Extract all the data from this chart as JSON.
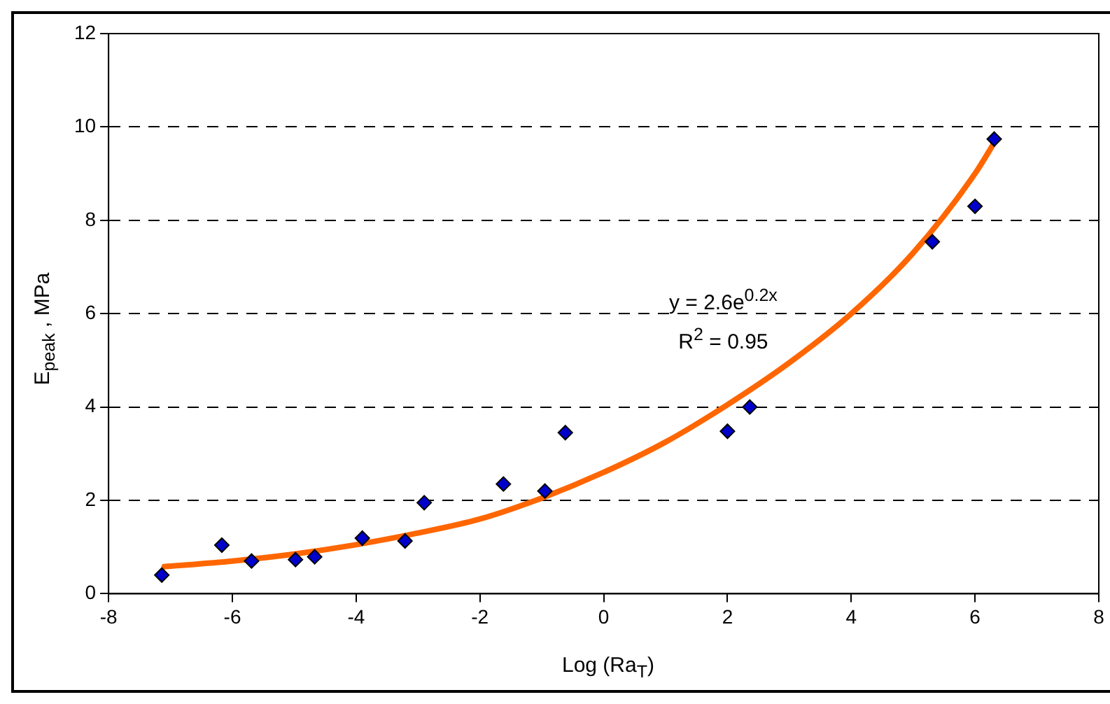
{
  "chart_data": {
    "type": "scatter",
    "xlabel": "Log (Ra$_{T}$)",
    "ylabel": "E$_{peak}$ , MPa",
    "annotations": [
      "y = 2.6e$^{0.2x}$",
      "R$^{2}$ = 0.95"
    ],
    "xlim": [
      -8,
      8
    ],
    "xticks": [
      -8,
      -6,
      -4,
      -2,
      0,
      2,
      4,
      6,
      8
    ],
    "ylim": [
      0,
      12
    ],
    "yticks": [
      0,
      2,
      4,
      6,
      8,
      10,
      12
    ],
    "grid": "y",
    "legend": false,
    "marker": "diamond",
    "series": [
      {
        "type": "scatter",
        "color": "#0000cc",
        "x": [
          -7.14,
          -6.17,
          -5.69,
          -4.98,
          -4.67,
          -3.9,
          -3.21,
          -2.9,
          -1.62,
          -0.95,
          -0.62,
          2.0,
          2.36,
          5.31,
          6.0,
          6.31
        ],
        "values": [
          0.4,
          1.04,
          0.7,
          0.73,
          0.79,
          1.19,
          1.13,
          1.95,
          2.35,
          2.2,
          3.45,
          3.48,
          4.0,
          7.54,
          8.3,
          9.74
        ]
      },
      {
        "type": "line",
        "color": "#ff6600",
        "line_style": "solid",
        "marker": "none",
        "x": [
          -7.1,
          -6,
          -5,
          -4,
          -3,
          -2,
          -1,
          0,
          1,
          2,
          3,
          4,
          5,
          6,
          6.35
        ],
        "values": [
          0.58,
          0.7,
          0.85,
          1.05,
          1.3,
          1.6,
          2.05,
          2.6,
          3.25,
          4.05,
          4.95,
          6.0,
          7.3,
          9.0,
          9.75
        ]
      }
    ]
  }
}
